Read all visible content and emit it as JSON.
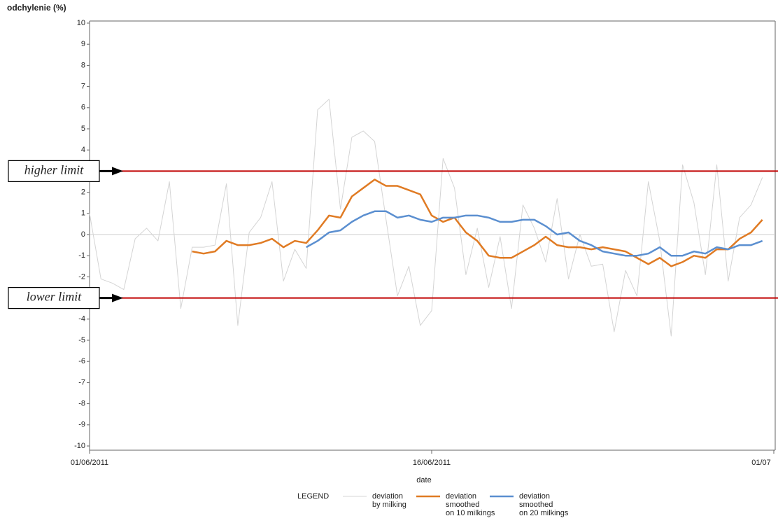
{
  "chart_data": {
    "type": "line",
    "y_label": "odchylenie (%)",
    "x_label": "date",
    "legend_title": "LEGEND",
    "ylim": [
      -10,
      10
    ],
    "yticks": [
      -10,
      -9,
      -8,
      -7,
      -6,
      -5,
      -4,
      -3,
      -2,
      -1,
      0,
      1,
      2,
      3,
      4,
      5,
      6,
      7,
      8,
      9,
      10
    ],
    "xlim": [
      0,
      30
    ],
    "xticks": [
      {
        "value": 0,
        "label": "01/06/2011"
      },
      {
        "value": 15,
        "label": "16/06/2011"
      },
      {
        "value": 30,
        "label": "01/07"
      }
    ],
    "x": [
      0,
      0.5,
      1,
      1.5,
      2,
      2.5,
      3,
      3.5,
      4,
      4.5,
      5,
      5.5,
      6,
      6.5,
      7,
      7.5,
      8,
      8.5,
      9,
      9.5,
      10,
      10.5,
      11,
      11.5,
      12,
      12.5,
      13,
      13.5,
      14,
      14.5,
      15,
      15.5,
      16,
      16.5,
      17,
      17.5,
      18,
      18.5,
      19,
      19.5,
      20,
      20.5,
      21,
      21.5,
      22,
      22.5,
      23,
      23.5,
      24,
      24.5,
      25,
      25.5,
      26,
      26.5,
      27,
      27.5,
      28,
      28.5,
      29,
      29.5
    ],
    "series": [
      {
        "name": "deviation\nby milking",
        "color": "#d4d4d4",
        "width": 1,
        "values": [
          1,
          -2.1,
          -2.3,
          -2.6,
          -0.2,
          0.3,
          -0.3,
          2.5,
          -3.5,
          -0.6,
          -0.6,
          -0.5,
          2.4,
          -4.3,
          0.1,
          0.8,
          2.5,
          -2.2,
          -0.7,
          -1.6,
          5.9,
          6.4,
          1.2,
          4.6,
          4.9,
          4.4,
          0.7,
          -2.9,
          -1.5,
          -4.3,
          -3.6,
          3.6,
          2.2,
          -1.9,
          0.3,
          -2.5,
          -0.1,
          -3.5,
          1.4,
          0.3,
          -1.3,
          1.7,
          -2.1,
          0,
          -1.5,
          -1.4,
          -4.6,
          -1.7,
          -2.9,
          2.5,
          -0.3,
          -4.8,
          3.3,
          1.5,
          -1.9,
          3.3,
          -2.2,
          0.8,
          1.4,
          2.7
        ]
      },
      {
        "name": "deviation\nsmoothed\non 10 milkings",
        "color": "#e07b24",
        "width": 2.5,
        "values": [
          null,
          null,
          null,
          null,
          null,
          null,
          null,
          null,
          null,
          -0.8,
          -0.9,
          -0.8,
          -0.3,
          -0.5,
          -0.5,
          -0.4,
          -0.2,
          -0.6,
          -0.3,
          -0.4,
          0.2,
          0.9,
          0.8,
          1.8,
          2.2,
          2.6,
          2.3,
          2.3,
          2.1,
          1.9,
          0.9,
          0.6,
          0.8,
          0.1,
          -0.3,
          -1.0,
          -1.1,
          -1.1,
          -0.8,
          -0.5,
          -0.1,
          -0.5,
          -0.6,
          -0.6,
          -0.7,
          -0.6,
          -0.7,
          -0.8,
          -1.1,
          -1.4,
          -1.1,
          -1.5,
          -1.3,
          -1.0,
          -1.1,
          -0.7,
          -0.7,
          -0.2,
          0.1,
          0.7
        ]
      },
      {
        "name": "deviation\nsmoothed\non 20 milkings",
        "color": "#5b8fd0",
        "width": 2.5,
        "values": [
          null,
          null,
          null,
          null,
          null,
          null,
          null,
          null,
          null,
          null,
          null,
          null,
          null,
          null,
          null,
          null,
          null,
          null,
          null,
          -0.6,
          -0.3,
          0.1,
          0.2,
          0.6,
          0.9,
          1.1,
          1.1,
          0.8,
          0.9,
          0.7,
          0.6,
          0.8,
          0.8,
          0.9,
          0.9,
          0.8,
          0.6,
          0.6,
          0.7,
          0.7,
          0.4,
          0.0,
          0.1,
          -0.3,
          -0.5,
          -0.8,
          -0.9,
          -1.0,
          -1.0,
          -0.9,
          -0.6,
          -1.0,
          -1.0,
          -0.8,
          -0.9,
          -0.6,
          -0.7,
          -0.5,
          -0.5,
          -0.3
        ]
      }
    ],
    "limits": [
      {
        "label": "higher limit",
        "value": 3,
        "color": "#c00000"
      },
      {
        "label": "lower limit",
        "value": -3,
        "color": "#c00000"
      }
    ]
  }
}
